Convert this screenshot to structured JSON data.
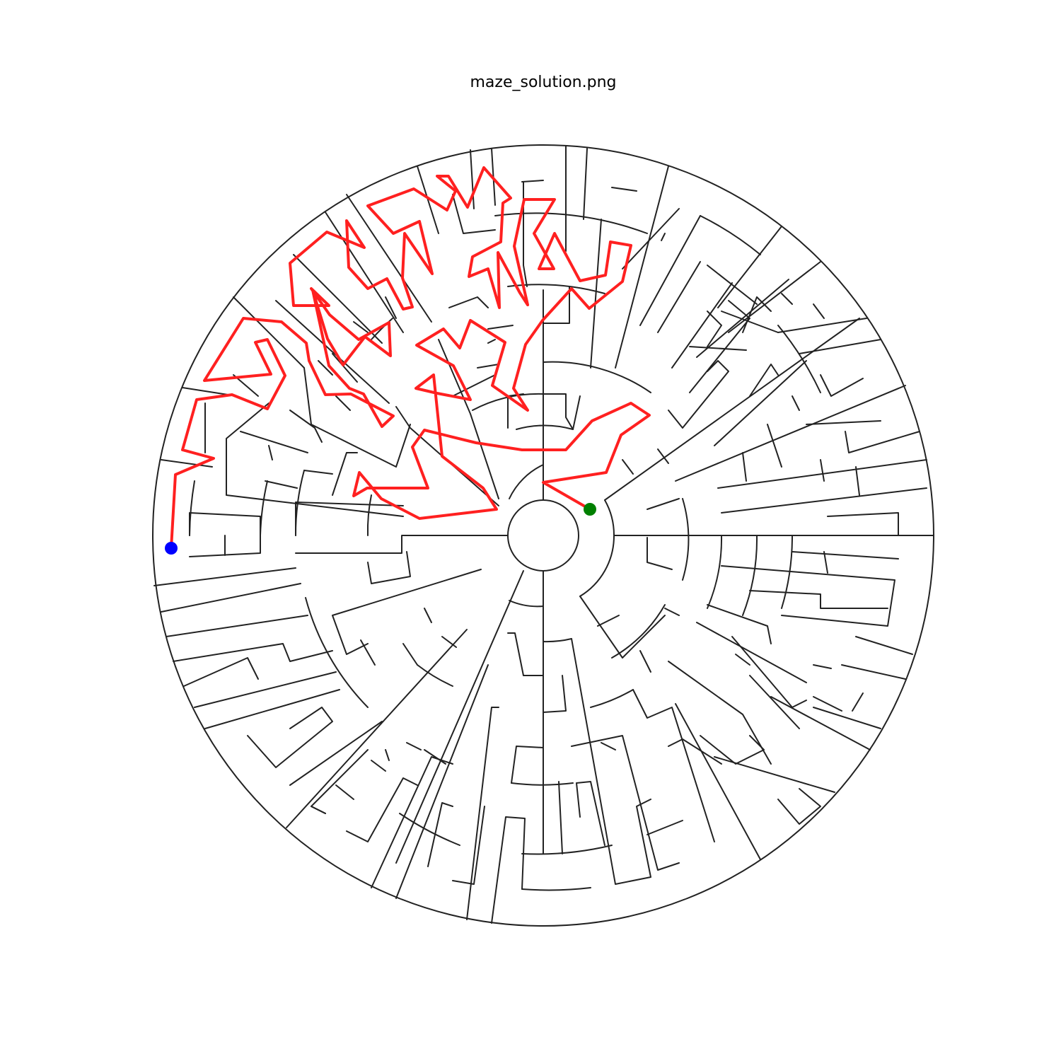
{
  "figure": {
    "title": "maze_solution.png"
  },
  "colors": {
    "walls": "#222222",
    "solution_path": "#ff2020",
    "start_marker": "#008000",
    "end_marker": "#0000ff",
    "background": "#ffffff"
  },
  "maze": {
    "shape": "circular",
    "markers": [
      {
        "name": "start",
        "color_key": "start_marker"
      },
      {
        "name": "end",
        "color_key": "end_marker"
      }
    ]
  }
}
